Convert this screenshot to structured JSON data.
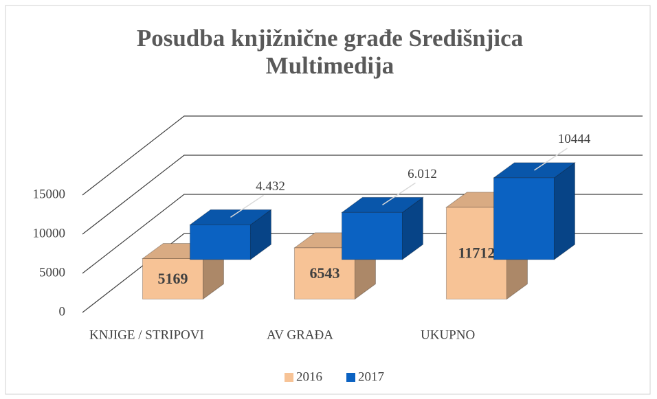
{
  "chart_data": {
    "type": "bar3d",
    "title": "Posudba knjižnične građe Središnjica Multimedija",
    "categories": [
      "KNJIGE / STRIPOVI",
      "AV GRAĐA",
      "UKUPNO"
    ],
    "series": [
      {
        "name": "2016",
        "color": "#f7c396",
        "values": [
          5169,
          6543,
          11712
        ]
      },
      {
        "name": "2017",
        "color": "#0b62c2",
        "values": [
          4432,
          6012,
          10444
        ],
        "value_labels": [
          "4.432",
          "6.012",
          "10444"
        ]
      }
    ],
    "ylim": [
      0,
      15000
    ],
    "yticks": [
      0,
      5000,
      10000,
      15000
    ],
    "grid": true,
    "legend": "bottom"
  }
}
